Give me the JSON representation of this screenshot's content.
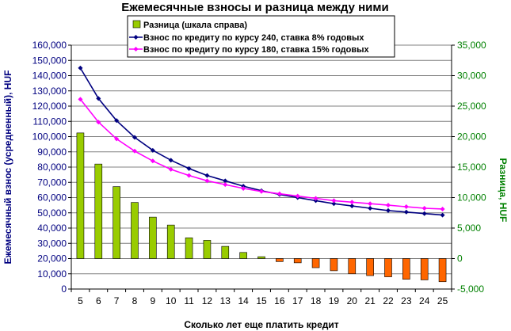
{
  "chart_data": {
    "type": "bar",
    "title": "Ежемесячные взносы и разница между ними",
    "xlabel": "Сколько лет еще платить кредит",
    "ylabel_left": "Ежемесячный взнос (усредненный), HUF",
    "ylabel_right": "Разница, HUF",
    "categories": [
      "5",
      "6",
      "7",
      "8",
      "9",
      "10",
      "11",
      "12",
      "13",
      "14",
      "15",
      "16",
      "17",
      "18",
      "19",
      "20",
      "21",
      "22",
      "23",
      "24",
      "25"
    ],
    "ylim_left": [
      0,
      160000
    ],
    "yticks_left": [
      "0",
      "10,000",
      "20,000",
      "30,000",
      "40,000",
      "50,000",
      "60,000",
      "70,000",
      "80,000",
      "90,000",
      "100,000",
      "110,000",
      "120,000",
      "130,000",
      "140,000",
      "150,000",
      "160,000"
    ],
    "ylim_right": [
      -5000,
      35000
    ],
    "yticks_right": [
      "-5,000",
      "0",
      "5,000",
      "10,000",
      "15,000",
      "20,000",
      "25,000",
      "30,000",
      "35,000"
    ],
    "grid": "horizontal",
    "legend_position": "top",
    "series": [
      {
        "name": "Разница (шкала справа)",
        "kind": "bar",
        "axis": "right",
        "values": [
          20600,
          15500,
          11800,
          9200,
          6800,
          5500,
          3400,
          3000,
          2000,
          1000,
          300,
          -500,
          -700,
          -1500,
          -2000,
          -2500,
          -2800,
          -3000,
          -3400,
          -3500,
          -3800
        ]
      },
      {
        "name": "Взнос по кредиту по курсу 240, ставка 8% годовых",
        "kind": "line",
        "axis": "left",
        "values": [
          145000,
          125000,
          110500,
          99500,
          91000,
          84500,
          79000,
          74500,
          71000,
          67500,
          64500,
          62000,
          60000,
          58000,
          56000,
          54500,
          53000,
          51500,
          50500,
          49500,
          48500
        ]
      },
      {
        "name": "Взнос по кредиту по курсу 180, ставка 15% годовых",
        "kind": "line",
        "axis": "left",
        "values": [
          124500,
          109500,
          98500,
          90500,
          84000,
          78500,
          74500,
          71000,
          68500,
          66000,
          64000,
          62500,
          61000,
          59500,
          58000,
          57000,
          56000,
          55000,
          54000,
          53000,
          52500
        ]
      }
    ]
  },
  "colors": {
    "left_axis": "#000080",
    "right_axis": "#008000",
    "bar_positive": "#99CC00",
    "bar_negative": "#FF6600",
    "line_240": "#000080",
    "line_180": "#FF00FF",
    "gridline": "#808080"
  }
}
